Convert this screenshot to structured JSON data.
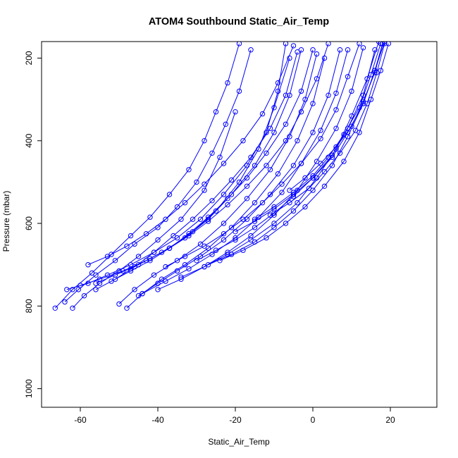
{
  "chart_data": {
    "type": "line",
    "title": "ATOM4 Southbound Static_Air_Temp",
    "xlabel": "Static_Air_Temp",
    "ylabel": "Pressure (mbar)",
    "xlim": [
      -70,
      32
    ],
    "ylim": [
      1045,
      160
    ],
    "y_axis_reversed": true,
    "grid": false,
    "legend": "none",
    "x_ticks": [
      -60,
      -40,
      -20,
      0,
      20
    ],
    "y_ticks": [
      200,
      400,
      600,
      800,
      1000
    ],
    "series_color": "#0000ff",
    "marker": "open-circle",
    "note_series": "profiles estimated from figure; many overlapping sounding profiles",
    "series": [
      {
        "x": [
          -66.5,
          -62.0,
          -57.0,
          -52.0,
          -47.0,
          -42.0,
          -37.0,
          -32.0,
          -28.0,
          -25.0,
          -22.0,
          -19.0
        ],
        "y": [
          805,
          760,
          720,
          675,
          630,
          585,
          530,
          470,
          400,
          330,
          260,
          165
        ]
      },
      {
        "x": [
          -64.0,
          -60.5,
          -56.0,
          -51.0,
          -46.0,
          -40.0,
          -35.0,
          -30.0,
          -26.0,
          -22.5,
          -19.0,
          -16.0
        ],
        "y": [
          790,
          760,
          725,
          690,
          650,
          610,
          560,
          500,
          430,
          360,
          280,
          180
        ]
      },
      {
        "x": [
          -62.0,
          -59.0,
          -55.0,
          -50.0,
          -45.0,
          -40.0,
          -34.0,
          -28.0,
          -24.0,
          -20.0
        ],
        "y": [
          805,
          775,
          745,
          715,
          680,
          640,
          590,
          520,
          440,
          330
        ]
      },
      {
        "x": [
          -63.5,
          -58.0,
          -53.0,
          -47.0,
          -41.0,
          -35.0,
          -29.0,
          -23.0,
          -17.0,
          -12.0,
          -9.0,
          -7.0
        ],
        "y": [
          760,
          745,
          725,
          700,
          670,
          635,
          590,
          530,
          460,
          380,
          280,
          165
        ]
      },
      {
        "x": [
          -60.0,
          -55.0,
          -49.0,
          -43.0,
          -37.0,
          -31.0,
          -25.0,
          -19.0,
          -14.0,
          -10.0,
          -6.0
        ],
        "y": [
          750,
          735,
          715,
          690,
          660,
          620,
          570,
          500,
          420,
          320,
          200
        ]
      },
      {
        "x": [
          -56.0,
          -51.0,
          -45.0,
          -39.0,
          -33.0,
          -27.0,
          -21.0,
          -15.0,
          -10.0,
          -6.0,
          -3.0
        ],
        "y": [
          745,
          725,
          700,
          670,
          635,
          590,
          530,
          460,
          380,
          290,
          180
        ]
      },
      {
        "x": [
          -50.0,
          -46.0,
          -41.0,
          -35.0,
          -29.0,
          -23.0,
          -17.0,
          -11.0,
          -6.0,
          -2.0,
          1.0
        ],
        "y": [
          795,
          760,
          725,
          690,
          650,
          600,
          540,
          470,
          390,
          300,
          190
        ]
      },
      {
        "x": [
          -48.0,
          -44.0,
          -39.0,
          -33.0,
          -27.0,
          -21.0,
          -15.0,
          -9.0,
          -4.0,
          0.0,
          3.0
        ],
        "y": [
          805,
          770,
          735,
          700,
          660,
          610,
          550,
          480,
          400,
          310,
          200
        ]
      },
      {
        "x": [
          -45.0,
          -40.0,
          -35.0,
          -29.0,
          -23.0,
          -17.0,
          -11.0,
          -5.0,
          0.0,
          4.0,
          7.0
        ],
        "y": [
          775,
          745,
          715,
          680,
          640,
          590,
          530,
          460,
          380,
          290,
          180
        ]
      },
      {
        "x": [
          -44.0,
          -38.0,
          -32.0,
          -26.0,
          -20.0,
          -14.0,
          -8.0,
          -3.0,
          2.0,
          6.0,
          9.0
        ],
        "y": [
          770,
          740,
          710,
          675,
          635,
          585,
          525,
          455,
          375,
          285,
          180
        ]
      },
      {
        "x": [
          -40.0,
          -34.0,
          -28.0,
          -22.0,
          -16.0,
          -10.0,
          -4.0,
          1.0,
          6.0,
          10.0,
          13.0
        ],
        "y": [
          760,
          735,
          705,
          670,
          630,
          580,
          520,
          450,
          370,
          280,
          175
        ]
      },
      {
        "x": [
          -34.0,
          -28.0,
          -22.0,
          -16.0,
          -10.0,
          -4.0,
          1.0,
          6.0,
          10.0,
          14.0,
          17.0
        ],
        "y": [
          730,
          705,
          675,
          640,
          600,
          550,
          490,
          420,
          340,
          250,
          160
        ]
      },
      {
        "x": [
          -27.0,
          -21.0,
          -15.0,
          -10.0,
          -5.0,
          0.0,
          5.0,
          9.0,
          13.0,
          16.0,
          18.5
        ],
        "y": [
          700,
          675,
          645,
          610,
          570,
          520,
          460,
          390,
          310,
          230,
          160
        ]
      },
      {
        "x": [
          -24.0,
          -18.0,
          -12.0,
          -7.0,
          -2.0,
          3.0,
          8.0,
          12.0,
          15.0,
          17.5,
          19.5
        ],
        "y": [
          690,
          665,
          635,
          600,
          560,
          510,
          450,
          380,
          300,
          230,
          165
        ]
      },
      {
        "x": [
          -56.0,
          -51.0,
          -46.0,
          -41.0,
          -36.0,
          -31.0,
          -26.0,
          -21.0,
          -16.0,
          -11.0,
          -7.0,
          -4.0
        ],
        "y": [
          760,
          735,
          705,
          670,
          630,
          590,
          545,
          495,
          440,
          370,
          290,
          185
        ]
      },
      {
        "x": [
          -52.0,
          -47.0,
          -42.0,
          -37.0,
          -32.0,
          -27.0,
          -22.0,
          -17.0,
          -12.0,
          -7.0,
          -3.0,
          0.0
        ],
        "y": [
          740,
          715,
          690,
          660,
          625,
          585,
          540,
          490,
          430,
          360,
          280,
          180
        ]
      },
      {
        "x": [
          -58.0,
          -53.0,
          -48.0,
          -43.0,
          -38.0,
          -33.0,
          -28.0,
          -23.0,
          -18.0,
          -13.0,
          -9.0,
          -5.0
        ],
        "y": [
          700,
          680,
          655,
          625,
          590,
          550,
          505,
          455,
          400,
          335,
          260,
          170
        ]
      },
      {
        "x": [
          -47.0,
          -42.0,
          -37.0,
          -32.0,
          -27.0,
          -22.0,
          -17.0,
          -12.0,
          -7.0,
          -3.0,
          1.0,
          4.0
        ],
        "y": [
          710,
          685,
          660,
          630,
          595,
          555,
          510,
          460,
          400,
          330,
          250,
          165
        ]
      },
      {
        "x": [
          -38.0,
          -33.0,
          -28.0,
          -23.0,
          -18.0,
          -13.0,
          -8.0,
          -3.0,
          2.0,
          6.0,
          9.0,
          12.0
        ],
        "y": [
          705,
          680,
          655,
          625,
          590,
          550,
          505,
          455,
          395,
          325,
          245,
          165
        ]
      },
      {
        "x": [
          -30.0,
          -25.0,
          -20.0,
          -15.0,
          -10.0,
          -5.0,
          0.0,
          5.0,
          9.0,
          13.0,
          16.0
        ],
        "y": [
          690,
          665,
          640,
          610,
          575,
          535,
          490,
          435,
          370,
          290,
          180
        ]
      },
      {
        "x": [
          -20.0,
          -15.0,
          -10.0,
          -5.0,
          0.0,
          5.0,
          9.0,
          13.0,
          16.0,
          18.0
        ],
        "y": [
          620,
          595,
          565,
          530,
          490,
          440,
          380,
          310,
          230,
          165
        ]
      },
      {
        "x": [
          -15.0,
          -10.0,
          -5.0,
          0.0,
          4.0,
          8.0,
          12.0,
          15.0,
          17.5
        ],
        "y": [
          590,
          560,
          525,
          485,
          440,
          385,
          320,
          240,
          165
        ]
      },
      {
        "x": [
          -11.0,
          -6.0,
          -1.0,
          3.0,
          7.0,
          11.0,
          14.0,
          16.5,
          18.5
        ],
        "y": [
          580,
          550,
          515,
          475,
          430,
          375,
          310,
          235,
          165
        ]
      },
      {
        "x": [
          -6.0,
          -2.0,
          2.0,
          6.0,
          10.0,
          13.0,
          16.0,
          18.0
        ],
        "y": [
          520,
          490,
          455,
          415,
          365,
          305,
          235,
          165
        ]
      }
    ]
  }
}
